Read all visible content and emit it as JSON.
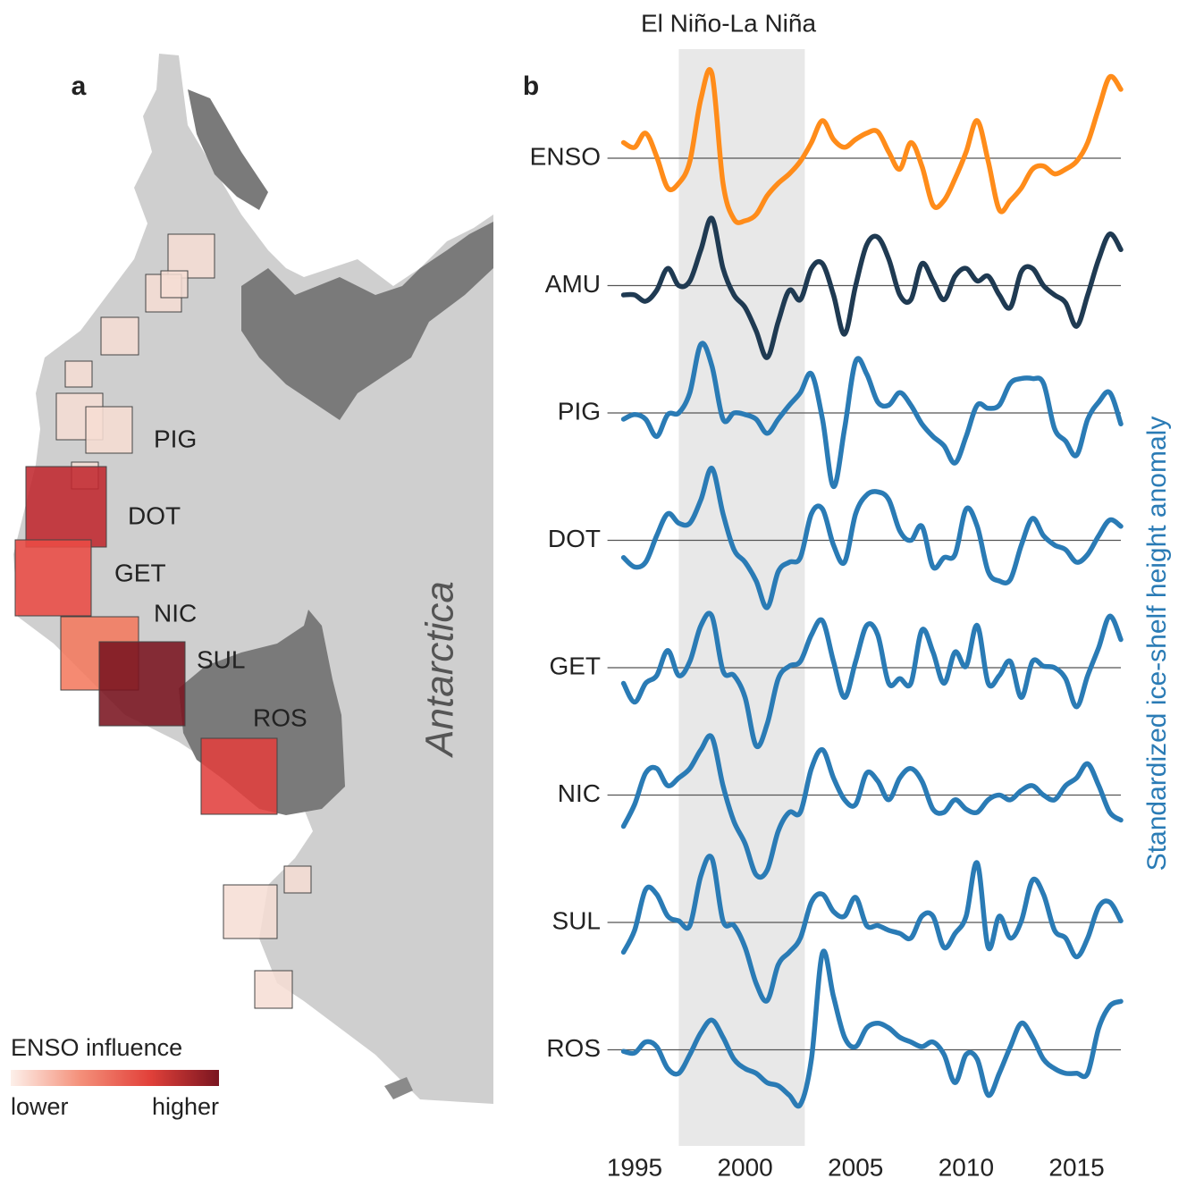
{
  "chart_data": {
    "type": "line",
    "title": "El Niño-La Niña",
    "panel_label": "b",
    "y_label": "Standardized ice-shelf height anomaly",
    "highlight": {
      "start": 1997,
      "end": 2002.7
    },
    "x": [
      1994.5,
      1995,
      1995.5,
      1996,
      1996.5,
      1997,
      1997.5,
      1998,
      1998.5,
      1999,
      1999.5,
      2000,
      2000.5,
      2001,
      2001.5,
      2002,
      2002.5,
      2003,
      2003.5,
      2004,
      2004.5,
      2005,
      2005.5,
      2006,
      2006.5,
      2007,
      2007.5,
      2008,
      2008.5,
      2009,
      2009.5,
      2010,
      2010.5,
      2011,
      2011.5,
      2012,
      2012.5,
      2013,
      2013.5,
      2014,
      2014.5,
      2015,
      2015.5,
      2016,
      2016.5,
      2017
    ],
    "xlim": [
      1994.5,
      2017
    ],
    "xticks": [
      1995,
      2000,
      2005,
      2010,
      2015
    ],
    "series": [
      {
        "name": "ENSO",
        "color": "#ff8c1a",
        "values": [
          0.5,
          0.35,
          0.8,
          0.05,
          -0.95,
          -0.8,
          -0.1,
          1.9,
          2.7,
          -0.8,
          -1.95,
          -2.0,
          -1.8,
          -1.2,
          -0.8,
          -0.5,
          -0.1,
          0.5,
          1.2,
          0.6,
          0.35,
          0.6,
          0.8,
          0.85,
          0.2,
          -0.35,
          0.5,
          -0.25,
          -1.5,
          -1.35,
          -0.65,
          0.2,
          1.2,
          -0.1,
          -1.65,
          -1.35,
          -0.95,
          -0.35,
          -0.25,
          -0.5,
          -0.35,
          -0.1,
          0.5,
          1.6,
          2.6,
          2.2
        ]
      },
      {
        "name": "AMU",
        "color": "#1f3a52",
        "values": [
          -0.3,
          -0.3,
          -0.5,
          -0.15,
          0.55,
          0,
          0.15,
          1.15,
          2.15,
          0.55,
          -0.3,
          -0.7,
          -1.45,
          -2.3,
          -1.15,
          -0.15,
          -0.45,
          0.55,
          0.7,
          -0.3,
          -1.55,
          0,
          1.3,
          1.55,
          0.85,
          -0.3,
          -0.45,
          0.7,
          0.15,
          -0.45,
          0.3,
          0.55,
          0.15,
          0.3,
          -0.3,
          -0.7,
          0.45,
          0.55,
          0,
          -0.3,
          -0.55,
          -1.3,
          -0.3,
          0.85,
          1.65,
          1.15
        ]
      },
      {
        "name": "PIG",
        "color": "#2a7bb5",
        "values": [
          -0.2,
          -0.05,
          -0.2,
          -0.75,
          -0.05,
          0,
          0.65,
          2.2,
          1.5,
          -0.2,
          0,
          -0.05,
          -0.2,
          -0.65,
          -0.2,
          0.25,
          0.65,
          1.25,
          -0.2,
          -2.35,
          -0.5,
          1.65,
          1.25,
          0.35,
          0.25,
          0.65,
          0.25,
          -0.35,
          -0.75,
          -1.05,
          -1.6,
          -0.75,
          0.25,
          0.15,
          0.25,
          0.95,
          1.1,
          1.1,
          0.95,
          -0.5,
          -0.9,
          -1.35,
          -0.2,
          0.35,
          0.65,
          -0.35
        ]
      },
      {
        "name": "DOT",
        "color": "#2a7bb5",
        "values": [
          -0.55,
          -0.85,
          -0.7,
          0.15,
          0.85,
          0.55,
          0.55,
          1.3,
          2.3,
          0.85,
          -0.3,
          -0.7,
          -1.3,
          -2.15,
          -1.0,
          -0.7,
          -0.55,
          0.85,
          1.0,
          -0.15,
          -0.7,
          0.85,
          1.45,
          1.55,
          1.3,
          0.3,
          0,
          0.45,
          -0.85,
          -0.55,
          -0.45,
          1.0,
          0.45,
          -1.0,
          -1.3,
          -1.25,
          -0.15,
          0.7,
          0.15,
          -0.15,
          -0.3,
          -0.7,
          -0.45,
          0.15,
          0.65,
          0.45
        ]
      },
      {
        "name": "GET",
        "color": "#2a7bb5",
        "values": [
          -0.5,
          -1.1,
          -0.5,
          -0.25,
          0.55,
          -0.25,
          0.2,
          1.35,
          1.65,
          -0.1,
          -0.25,
          -0.95,
          -2.5,
          -1.8,
          -0.35,
          0.05,
          0.2,
          1.05,
          1.5,
          0.2,
          -0.95,
          0.2,
          1.35,
          1.05,
          -0.5,
          -0.35,
          -0.5,
          1.2,
          0.5,
          -0.5,
          0.5,
          0.05,
          1.35,
          -0.5,
          -0.25,
          0.2,
          -0.95,
          0.2,
          0.05,
          0,
          -0.35,
          -1.25,
          -0.25,
          0.65,
          1.65,
          0.9
        ]
      },
      {
        "name": "NIC",
        "color": "#2a7bb5",
        "values": [
          -1.0,
          -0.3,
          0.7,
          0.85,
          0.3,
          0.55,
          0.85,
          1.45,
          1.85,
          0.3,
          -0.85,
          -1.55,
          -2.55,
          -2.4,
          -1.15,
          -0.55,
          -0.55,
          0.85,
          1.45,
          0.55,
          -0.15,
          -0.3,
          0.7,
          0.45,
          -0.15,
          0.55,
          0.85,
          0.45,
          -0.45,
          -0.55,
          -0.15,
          -0.45,
          -0.55,
          -0.15,
          0,
          -0.15,
          0.15,
          0.3,
          0,
          -0.15,
          0.3,
          0.55,
          1.0,
          0.3,
          -0.55,
          -0.8
        ]
      },
      {
        "name": "SUL",
        "color": "#2a7bb5",
        "values": [
          -0.95,
          -0.25,
          1.05,
          0.9,
          0.2,
          0.05,
          -0.1,
          1.5,
          2.05,
          0.05,
          -0.1,
          -0.8,
          -1.95,
          -2.5,
          -1.35,
          -0.95,
          -0.5,
          0.65,
          0.9,
          0.35,
          0.2,
          0.8,
          -0.1,
          -0.1,
          -0.25,
          -0.35,
          -0.5,
          0.2,
          0.2,
          -0.8,
          -0.35,
          0.2,
          1.9,
          -0.8,
          0.2,
          -0.5,
          0.05,
          1.35,
          0.9,
          -0.25,
          -0.5,
          -1.1,
          -0.5,
          0.5,
          0.65,
          0.05
        ]
      },
      {
        "name": "ROS",
        "color": "#2a7bb5",
        "values": [
          -0.05,
          -0.1,
          0.25,
          0.1,
          -0.6,
          -0.75,
          -0.15,
          0.55,
          0.95,
          0.4,
          -0.3,
          -0.6,
          -0.75,
          -1.05,
          -1.15,
          -1.45,
          -1.75,
          -0.3,
          3.1,
          1.7,
          0.4,
          0.1,
          0.7,
          0.85,
          0.7,
          0.4,
          0.25,
          0.1,
          0.25,
          -0.15,
          -1.05,
          -0.15,
          -0.3,
          -1.45,
          -0.75,
          0.1,
          0.85,
          0.4,
          -0.3,
          -0.6,
          -0.75,
          -0.75,
          -0.75,
          0.7,
          1.4,
          1.55
        ]
      }
    ]
  },
  "map": {
    "panel_label": "a",
    "continent_label": "Antarctica",
    "regions": [
      {
        "label": "PIG",
        "color": "#f6ddd3"
      },
      {
        "label": "DOT",
        "color": "#c0282f"
      },
      {
        "label": "GET",
        "color": "#ea4b44"
      },
      {
        "label": "NIC",
        "color": "#f47a5e"
      },
      {
        "label": "SUL",
        "color": "#7a1520"
      },
      {
        "label": "ROS",
        "color": "#e1403d"
      }
    ],
    "legend": {
      "title": "ENSO influence",
      "low": "lower",
      "high": "higher",
      "colors": [
        "#fdf0ea",
        "#f4907a",
        "#e2413a",
        "#7a1520"
      ]
    }
  }
}
